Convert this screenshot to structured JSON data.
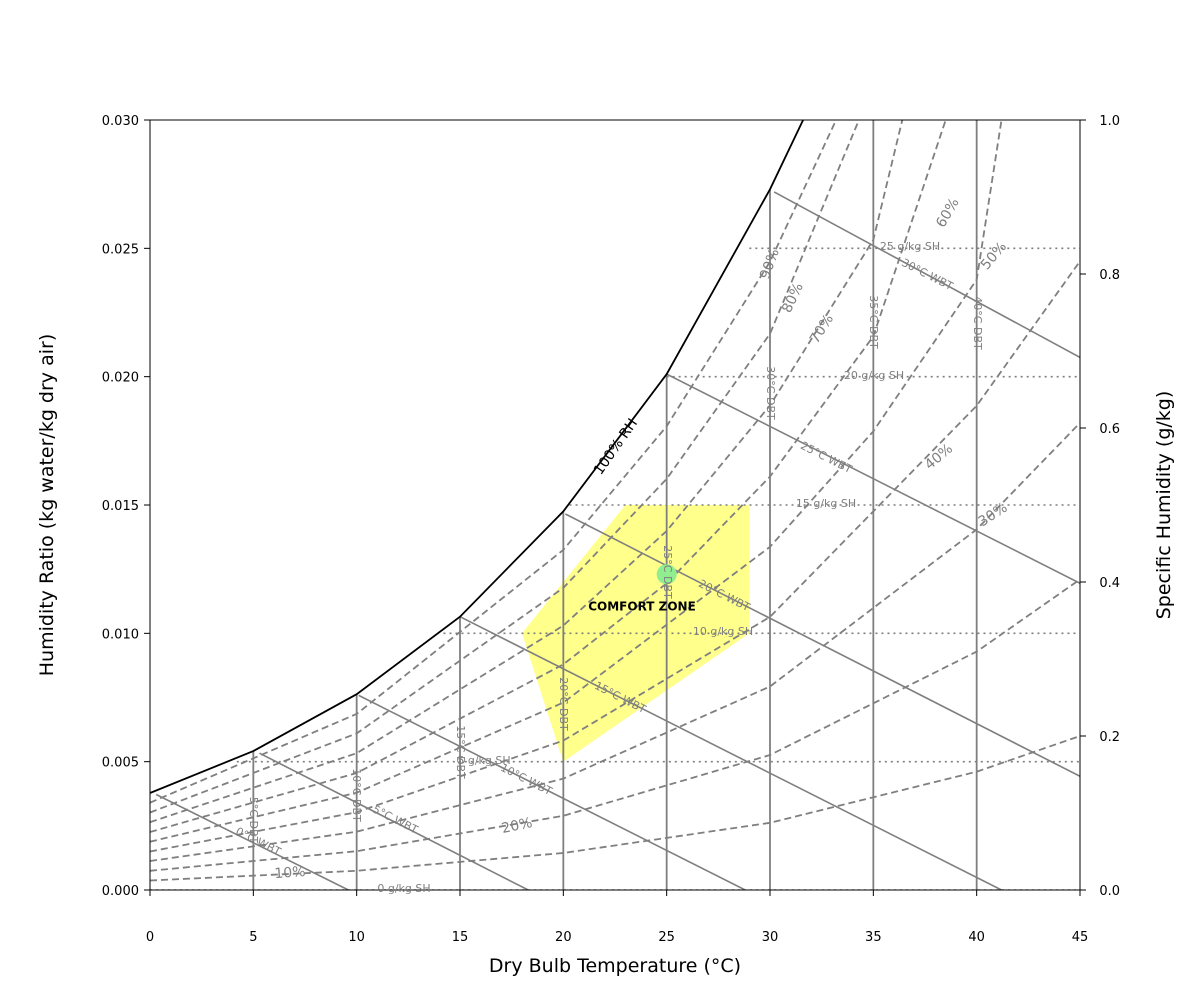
{
  "chart_data": {
    "type": "line",
    "title": "",
    "xlabel": "Dry Bulb Temperature (°C)",
    "ylabel": "Humidity Ratio (kg water/kg dry air)",
    "y2label": "Specific Humidity (g/kg)",
    "xlim": [
      0,
      45
    ],
    "ylim": [
      0,
      0.03
    ],
    "y2lim": [
      0,
      1.0
    ],
    "grid": false,
    "x_ticks": [
      "0",
      "5",
      "10",
      "15",
      "20",
      "25",
      "30",
      "35",
      "40",
      "45"
    ],
    "y_ticks": [
      "0.000",
      "0.005",
      "0.010",
      "0.015",
      "0.020",
      "0.025",
      "0.030"
    ],
    "y2_ticks": [
      "0.0",
      "0.2",
      "0.4",
      "0.6",
      "0.8",
      "1.0"
    ],
    "saturation_curve": {
      "label": "100% RH",
      "x": [
        0,
        5,
        10,
        15,
        20,
        25,
        30,
        31.6
      ],
      "y": [
        0.00378,
        0.00541,
        0.00763,
        0.01065,
        0.01475,
        0.0201,
        0.0273,
        0.03
      ]
    },
    "rh_curves": [
      {
        "rh": 90,
        "label": "90%",
        "x": [
          0,
          10,
          20,
          25,
          30,
          33.2
        ],
        "y": [
          0.0034,
          0.00686,
          0.01325,
          0.01807,
          0.02448,
          0.03
        ]
      },
      {
        "rh": 80,
        "label": "80%",
        "x": [
          0,
          10,
          20,
          25,
          30,
          34.3
        ],
        "y": [
          0.00302,
          0.0061,
          0.01177,
          0.01602,
          0.02167,
          0.03
        ]
      },
      {
        "rh": 70,
        "label": "70%",
        "x": [
          0,
          10,
          20,
          25,
          30,
          35,
          36.4
        ],
        "y": [
          0.00264,
          0.00533,
          0.0103,
          0.01399,
          0.01888,
          0.02533,
          0.03
        ]
      },
      {
        "rh": 60,
        "label": "60%",
        "x": [
          0,
          10,
          20,
          25,
          30,
          35,
          38.5
        ],
        "y": [
          0.00226,
          0.00456,
          0.00879,
          0.01195,
          0.01611,
          0.02157,
          0.03
        ]
      },
      {
        "rh": 50,
        "label": "50%",
        "x": [
          0,
          10,
          20,
          30,
          35,
          40,
          41.2
        ],
        "y": [
          0.00188,
          0.00379,
          0.0073,
          0.01337,
          0.01787,
          0.02378,
          0.03
        ]
      },
      {
        "rh": 40,
        "label": "40%",
        "x": [
          0,
          10,
          20,
          30,
          40,
          45
        ],
        "y": [
          0.0015,
          0.00303,
          0.00582,
          0.01064,
          0.01887,
          0.0245
        ]
      },
      {
        "rh": 30,
        "label": "30%",
        "x": [
          0,
          10,
          20,
          30,
          40,
          45
        ],
        "y": [
          0.00113,
          0.00227,
          0.00434,
          0.00793,
          0.01405,
          0.0182
        ]
      },
      {
        "rh": 20,
        "label": "20%",
        "x": [
          0,
          10,
          20,
          30,
          40,
          45
        ],
        "y": [
          0.00075,
          0.00151,
          0.00289,
          0.00526,
          0.00929,
          0.0121
        ]
      },
      {
        "rh": 10,
        "label": "10%",
        "x": [
          0,
          10,
          20,
          30,
          40,
          45
        ],
        "y": [
          0.00037,
          0.00075,
          0.00144,
          0.00262,
          0.00461,
          0.006
        ]
      }
    ],
    "wbt_lines": [
      {
        "label": "0°C WBT",
        "x": [
          0.3,
          9.6
        ],
        "y": [
          0.00372,
          0.0
        ]
      },
      {
        "label": "5°C WBT",
        "x": [
          5.3,
          18.3
        ],
        "y": [
          0.00533,
          0.0
        ]
      },
      {
        "label": "10°C WBT",
        "x": [
          10.1,
          28.8
        ],
        "y": [
          0.00758,
          0.0
        ]
      },
      {
        "label": "15°C WBT",
        "x": [
          15.0,
          41.2
        ],
        "y": [
          0.01065,
          0.0
        ]
      },
      {
        "label": "20°C WBT",
        "x": [
          20.1,
          45
        ],
        "y": [
          0.01465,
          0.00443
        ]
      },
      {
        "label": "25°C WBT",
        "x": [
          25.0,
          45
        ],
        "y": [
          0.0201,
          0.01195
        ]
      },
      {
        "label": "30°C WBT",
        "x": [
          30.2,
          45
        ],
        "y": [
          0.0272,
          0.02075
        ]
      }
    ],
    "dbt_lines": [
      {
        "label": "5°C DBT",
        "x": 5,
        "ymax": 0.00541
      },
      {
        "label": "10°C DBT",
        "x": 10,
        "ymax": 0.00763
      },
      {
        "label": "15°C DBT",
        "x": 15,
        "ymax": 0.01065
      },
      {
        "label": "20°C DBT",
        "x": 20,
        "ymax": 0.01475
      },
      {
        "label": "25°C DBT",
        "x": 25,
        "ymax": 0.0201
      },
      {
        "label": "30°C DBT",
        "x": 30,
        "ymax": 0.0273
      },
      {
        "label": "35°C DBT",
        "x": 35,
        "ymax": 0.03
      },
      {
        "label": "40°C DBT",
        "x": 40,
        "ymax": 0.03
      }
    ],
    "sh_lines": [
      {
        "label": "0 g/kg SH",
        "y": 0.0,
        "xmin": 0
      },
      {
        "label": "5 g/kg SH",
        "y": 0.005,
        "xmin": 4.2
      },
      {
        "label": "10 g/kg SH",
        "y": 0.01,
        "xmin": 14.2
      },
      {
        "label": "15 g/kg SH",
        "y": 0.015,
        "xmin": 20.3
      },
      {
        "label": "20 g/kg SH",
        "y": 0.02,
        "xmin": 25.0
      },
      {
        "label": "25 g/kg SH",
        "y": 0.025,
        "xmin": 29.0
      }
    ],
    "comfort_zone": {
      "label": "COMFORT ZONE",
      "color": "#ffff00",
      "x": [
        20,
        18,
        23,
        29,
        29,
        20
      ],
      "y": [
        0.005,
        0.01,
        0.015,
        0.015,
        0.01,
        0.005
      ]
    },
    "point": {
      "x": 25,
      "y": 0.0123,
      "color": "#90ee90"
    },
    "colors": {
      "curves": "#7f7f7f",
      "saturation": "#000000"
    }
  }
}
